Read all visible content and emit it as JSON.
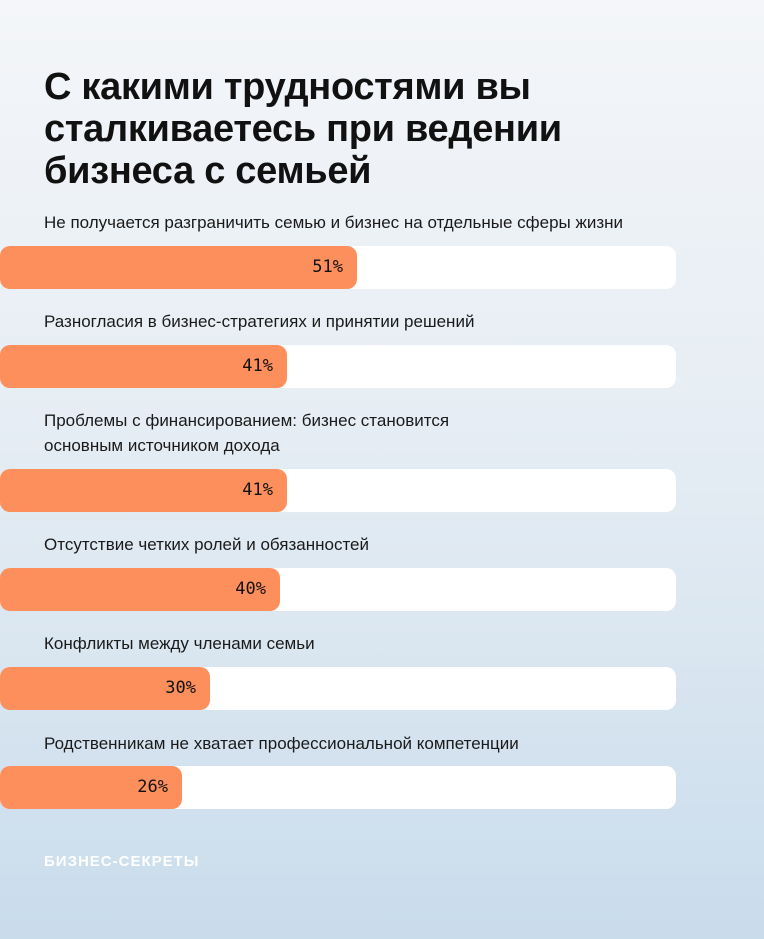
{
  "chart_data": {
    "type": "bar",
    "orientation": "horizontal",
    "title": "С какими трудностями вы сталкиваетесь при ведении бизнеса с семьей",
    "categories": [
      "Не получается разграничить семью и бизнес на отдельные сферы жизни",
      "Разногласия в бизнес-стратегиях и принятии решений",
      "Проблемы с финансированием: бизнес становится основным источником дохода",
      "Отсутствие четких ролей и обязанностей",
      "Конфликты между членами семьи",
      "Родственникам не хватает профессиональной компетенции"
    ],
    "values": [
      51,
      41,
      41,
      40,
      30,
      26
    ],
    "labels": [
      "51%",
      "41%",
      "41%",
      "40%",
      "30%",
      "26%"
    ],
    "bar_color": "#fc8f5b",
    "track_color": "#ffffff"
  },
  "brand": "БИЗНЕС-СЕКРЕТЫ"
}
